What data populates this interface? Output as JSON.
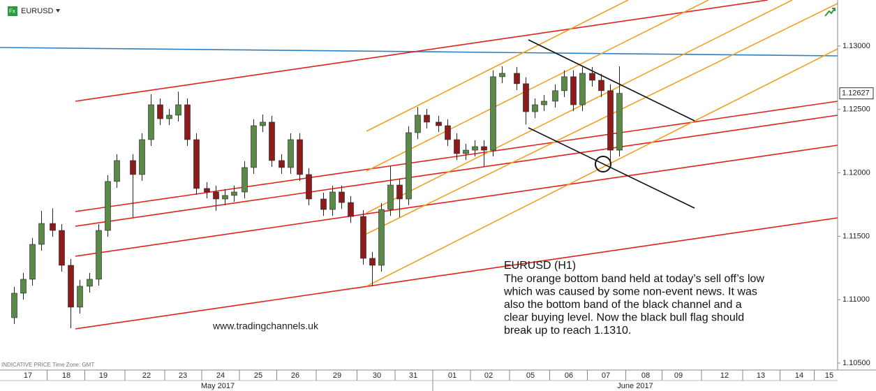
{
  "header": {
    "symbol": "EURUSD",
    "footer_note": "INDICATIVE PRICE   Time Zone: GMT"
  },
  "chart_data": {
    "type": "candlestick",
    "categories": [
      "17",
      "18",
      "19",
      "22",
      "23",
      "24",
      "25",
      "26",
      "29",
      "30",
      "31",
      "01",
      "02",
      "05",
      "06",
      "07",
      "08",
      "09",
      "12",
      "13",
      "14",
      "15"
    ],
    "months": [
      "May 2017",
      "June 2017"
    ],
    "open": [
      1.10858,
      1.11051,
      1.11161,
      1.11436,
      1.11601,
      1.11546,
      1.11271,
      1.10941,
      1.11106,
      1.11161,
      1.11546,
      1.11932,
      1.12097,
      1.11987,
      1.12262,
      1.12537,
      1.12427,
      1.12455,
      1.12537,
      1.12262,
      1.11877,
      1.11849,
      1.11794,
      1.11822,
      1.11849,
      1.12042,
      1.12372,
      1.124,
      1.12097,
      1.12042,
      1.12262,
      1.11987,
      1.11794,
      1.11711,
      1.11849,
      1.11766,
      1.11656,
      1.11326,
      1.11271,
      1.11711,
      1.11904,
      1.11794,
      1.12317,
      1.12455,
      1.124,
      1.12372,
      1.12262,
      1.12152,
      1.12179,
      1.12207,
      1.12179,
      1.12758,
      1.12785,
      1.12703,
      1.12482,
      1.12537,
      1.12565,
      1.12648,
      1.12758,
      1.12537,
      1.12785,
      1.1273,
      1.12648,
      1.12179
    ],
    "high": [
      1.11101,
      1.11211,
      1.11486,
      1.117,
      1.1172,
      1.11596,
      1.11321,
      1.11156,
      1.11211,
      1.11596,
      1.11982,
      1.12147,
      1.12147,
      1.12312,
      1.1262,
      1.12587,
      1.12505,
      1.1264,
      1.12587,
      1.12312,
      1.11927,
      1.11899,
      1.11872,
      1.11899,
      1.12092,
      1.12422,
      1.1246,
      1.1245,
      1.12147,
      1.12312,
      1.12312,
      1.12037,
      1.11844,
      1.11899,
      1.11899,
      1.11816,
      1.11706,
      1.11376,
      1.11761,
      1.1205,
      1.11954,
      1.12367,
      1.1252,
      1.12505,
      1.1245,
      1.12422,
      1.12312,
      1.12229,
      1.12257,
      1.12257,
      1.12808,
      1.1284,
      1.12835,
      1.12753,
      1.12587,
      1.12615,
      1.12698,
      1.12808,
      1.12808,
      1.12835,
      1.12835,
      1.1278,
      1.12698,
      1.1284
    ],
    "low": [
      1.10808,
      1.11001,
      1.11111,
      1.11386,
      1.11496,
      1.11221,
      1.10775,
      1.10891,
      1.11056,
      1.11111,
      1.11496,
      1.11882,
      1.1165,
      1.11937,
      1.12212,
      1.12377,
      1.12377,
      1.12405,
      1.12212,
      1.11827,
      1.11799,
      1.117,
      1.11744,
      1.11772,
      1.11799,
      1.11992,
      1.12322,
      1.12047,
      1.11992,
      1.11992,
      1.11937,
      1.11744,
      1.11661,
      1.11661,
      1.11716,
      1.11606,
      1.11276,
      1.11106,
      1.11221,
      1.11661,
      1.1165,
      1.11744,
      1.12267,
      1.1235,
      1.12322,
      1.12212,
      1.12102,
      1.12102,
      1.12129,
      1.1205,
      1.12129,
      1.12708,
      1.12653,
      1.1238,
      1.12432,
      1.12487,
      1.12515,
      1.12598,
      1.12487,
      1.12487,
      1.1268,
      1.12598,
      1.12042,
      1.12129
    ],
    "close": [
      1.11051,
      1.11161,
      1.11436,
      1.11601,
      1.11546,
      1.11271,
      1.10941,
      1.11106,
      1.11161,
      1.11546,
      1.11932,
      1.12097,
      1.11987,
      1.12262,
      1.12537,
      1.12427,
      1.12455,
      1.12537,
      1.12262,
      1.11877,
      1.11849,
      1.11794,
      1.11822,
      1.11849,
      1.12042,
      1.12372,
      1.124,
      1.12097,
      1.12042,
      1.12262,
      1.11987,
      1.11794,
      1.11711,
      1.11849,
      1.11766,
      1.11656,
      1.11326,
      1.11271,
      1.11711,
      1.11904,
      1.11794,
      1.12317,
      1.12455,
      1.124,
      1.12372,
      1.12262,
      1.12152,
      1.12179,
      1.12207,
      1.12179,
      1.12758,
      1.12785,
      1.12703,
      1.12482,
      1.12537,
      1.12565,
      1.12648,
      1.12758,
      1.12537,
      1.12785,
      1.1273,
      1.12648,
      1.12179,
      1.12627
    ],
    "up_color": "#5b8a48",
    "down_color": "#8e1b1b",
    "ylim": [
      1.10456,
      1.13363
    ],
    "yticks": [
      {
        "value": 1.105,
        "label": "1.10500"
      },
      {
        "value": 1.11,
        "label": "1.11000"
      },
      {
        "value": 1.115,
        "label": "1.11500"
      },
      {
        "value": 1.12,
        "label": "1.12000"
      },
      {
        "value": 1.125,
        "label": "1.12500"
      },
      {
        "value": 1.13,
        "label": "1.13000"
      }
    ],
    "last_price": {
      "value": 1.12627,
      "label": "1.12627"
    },
    "watermark": "www.tradingchannels.uk",
    "annotation": {
      "title": "EURUSD (H1)",
      "lines": [
        "The orange bottom band held at today’s sell off’s low",
        "which was caused by some non-event news. It was",
        "also the bottom band of the black channel and a",
        "clear buying level. Now the black bull flag should",
        "break up to reach 1.1310."
      ]
    }
  }
}
